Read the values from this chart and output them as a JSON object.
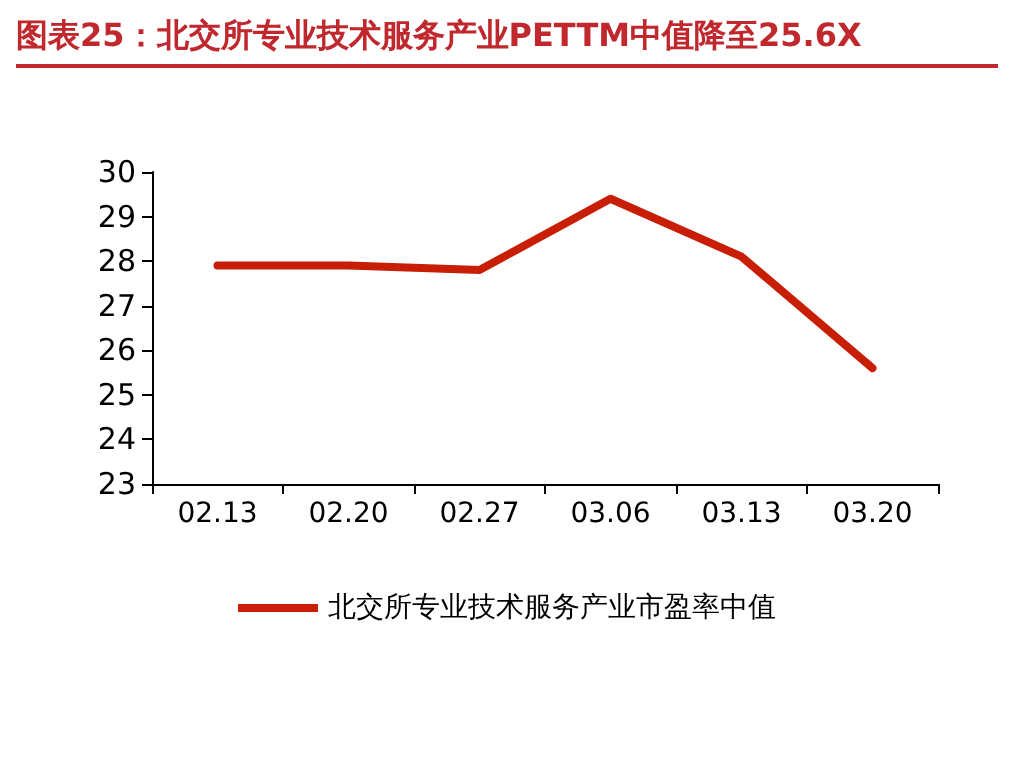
{
  "chart_data": {
    "type": "line",
    "title": "图表25：北交所专业技术服务产业PETTM中值降至25.6X",
    "categories": [
      "02.13",
      "02.20",
      "02.27",
      "03.06",
      "03.13",
      "03.20"
    ],
    "series": [
      {
        "name": "北交所专业技术服务产业市盈率中值",
        "color": "#c81e06",
        "values": [
          27.9,
          27.9,
          27.8,
          29.4,
          28.1,
          25.6
        ]
      }
    ],
    "ylim": [
      23,
      30
    ],
    "yticks": [
      23,
      24,
      25,
      26,
      27,
      28,
      29,
      30
    ],
    "grid": false,
    "legend": "bottom",
    "marker": "none",
    "line_style": "solid"
  }
}
